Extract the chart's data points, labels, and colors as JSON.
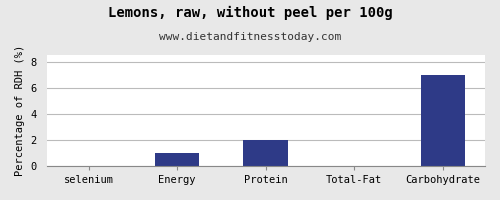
{
  "title": "Lemons, raw, without peel per 100g",
  "subtitle": "www.dietandfitnesstoday.com",
  "categories": [
    "selenium",
    "Energy",
    "Protein",
    "Total-Fat",
    "Carbohydrate"
  ],
  "values": [
    0,
    1,
    2,
    0,
    7
  ],
  "bar_color": "#2e3a87",
  "ylabel": "Percentage of RDH (%)",
  "ylim": [
    0,
    8.5
  ],
  "yticks": [
    0,
    2,
    4,
    6,
    8
  ],
  "background_color": "#e8e8e8",
  "plot_bg_color": "#ffffff",
  "title_fontsize": 10,
  "subtitle_fontsize": 8,
  "tick_fontsize": 7.5,
  "ylabel_fontsize": 7.5,
  "bar_width": 0.5
}
